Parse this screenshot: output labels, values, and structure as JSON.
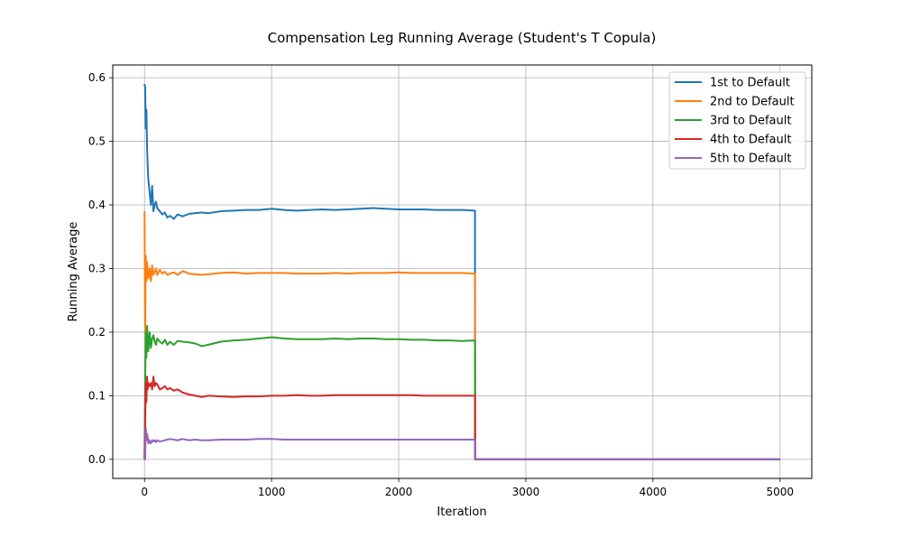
{
  "chart_data": {
    "type": "line",
    "title": "Compensation Leg Running Average (Student's T Copula)",
    "xlabel": "Iteration",
    "ylabel": "Running Average",
    "xlim": [
      -250,
      5250
    ],
    "ylim": [
      -0.03,
      0.62
    ],
    "xticks": [
      0,
      1000,
      2000,
      3000,
      4000,
      5000
    ],
    "yticks": [
      0.0,
      0.1,
      0.2,
      0.3,
      0.4,
      0.5,
      0.6
    ],
    "xtick_labels": [
      "0",
      "1000",
      "2000",
      "3000",
      "4000",
      "5000"
    ],
    "ytick_labels": [
      "0.0",
      "0.1",
      "0.2",
      "0.3",
      "0.4",
      "0.5",
      "0.6"
    ],
    "grid": true,
    "legend_position": "top-right",
    "series": [
      {
        "name": "1st to Default",
        "color": "#1f77b4",
        "x": [
          0,
          5,
          10,
          15,
          20,
          25,
          30,
          40,
          50,
          60,
          70,
          80,
          90,
          100,
          120,
          140,
          160,
          180,
          200,
          230,
          260,
          300,
          350,
          400,
          450,
          500,
          600,
          700,
          800,
          900,
          1000,
          1100,
          1200,
          1300,
          1400,
          1500,
          1600,
          1700,
          1800,
          1900,
          2000,
          2100,
          2200,
          2300,
          2400,
          2500,
          2600,
          2601,
          3000,
          4000,
          5000
        ],
        "y": [
          0.59,
          0.585,
          0.52,
          0.55,
          0.49,
          0.46,
          0.44,
          0.42,
          0.4,
          0.43,
          0.39,
          0.4,
          0.405,
          0.395,
          0.39,
          0.385,
          0.388,
          0.38,
          0.383,
          0.378,
          0.385,
          0.382,
          0.386,
          0.387,
          0.388,
          0.387,
          0.39,
          0.391,
          0.392,
          0.392,
          0.394,
          0.392,
          0.391,
          0.392,
          0.393,
          0.392,
          0.393,
          0.394,
          0.395,
          0.394,
          0.393,
          0.393,
          0.393,
          0.392,
          0.392,
          0.392,
          0.391,
          0.0,
          0.0,
          0.0,
          0.0
        ]
      },
      {
        "name": "2nd to Default",
        "color": "#ff7f0e",
        "x": [
          0,
          5,
          10,
          15,
          20,
          25,
          30,
          40,
          50,
          60,
          70,
          80,
          90,
          100,
          120,
          140,
          160,
          180,
          200,
          230,
          260,
          300,
          350,
          400,
          450,
          500,
          600,
          700,
          800,
          900,
          1000,
          1100,
          1200,
          1300,
          1400,
          1500,
          1600,
          1700,
          1800,
          1900,
          2000,
          2100,
          2200,
          2300,
          2400,
          2500,
          2600,
          2601,
          3000,
          4000,
          5000
        ],
        "y": [
          0.39,
          0.2,
          0.32,
          0.28,
          0.31,
          0.29,
          0.285,
          0.3,
          0.28,
          0.305,
          0.29,
          0.295,
          0.3,
          0.29,
          0.298,
          0.292,
          0.295,
          0.29,
          0.292,
          0.294,
          0.29,
          0.296,
          0.292,
          0.291,
          0.29,
          0.291,
          0.293,
          0.294,
          0.292,
          0.293,
          0.293,
          0.293,
          0.292,
          0.292,
          0.292,
          0.293,
          0.292,
          0.293,
          0.293,
          0.293,
          0.294,
          0.293,
          0.293,
          0.293,
          0.293,
          0.293,
          0.292,
          0.0,
          0.0,
          0.0,
          0.0
        ]
      },
      {
        "name": "3rd to Default",
        "color": "#2ca02c",
        "x": [
          0,
          5,
          10,
          15,
          20,
          25,
          30,
          40,
          50,
          60,
          70,
          80,
          90,
          100,
          120,
          140,
          160,
          180,
          200,
          230,
          260,
          300,
          350,
          400,
          450,
          500,
          600,
          700,
          800,
          900,
          1000,
          1100,
          1200,
          1300,
          1400,
          1500,
          1600,
          1700,
          1800,
          1900,
          2000,
          2100,
          2200,
          2300,
          2400,
          2500,
          2600,
          2601,
          3000,
          4000,
          5000
        ],
        "y": [
          0.0,
          0.12,
          0.2,
          0.16,
          0.21,
          0.19,
          0.17,
          0.2,
          0.175,
          0.19,
          0.195,
          0.185,
          0.18,
          0.19,
          0.185,
          0.182,
          0.188,
          0.18,
          0.185,
          0.18,
          0.186,
          0.185,
          0.184,
          0.182,
          0.178,
          0.18,
          0.185,
          0.187,
          0.188,
          0.19,
          0.192,
          0.19,
          0.189,
          0.189,
          0.189,
          0.19,
          0.189,
          0.19,
          0.19,
          0.189,
          0.189,
          0.188,
          0.188,
          0.187,
          0.187,
          0.186,
          0.187,
          0.0,
          0.0,
          0.0,
          0.0
        ]
      },
      {
        "name": "4th to Default",
        "color": "#d62728",
        "x": [
          0,
          5,
          10,
          15,
          20,
          25,
          30,
          40,
          50,
          60,
          70,
          80,
          90,
          100,
          120,
          140,
          160,
          180,
          200,
          230,
          260,
          300,
          350,
          400,
          450,
          500,
          600,
          700,
          800,
          900,
          1000,
          1100,
          1200,
          1300,
          1400,
          1500,
          1600,
          1700,
          1800,
          1900,
          2000,
          2100,
          2200,
          2300,
          2400,
          2500,
          2600,
          2601,
          3000,
          4000,
          5000
        ],
        "y": [
          0.0,
          0.05,
          0.12,
          0.09,
          0.13,
          0.11,
          0.12,
          0.115,
          0.12,
          0.11,
          0.13,
          0.115,
          0.12,
          0.118,
          0.11,
          0.112,
          0.115,
          0.11,
          0.112,
          0.108,
          0.11,
          0.105,
          0.102,
          0.1,
          0.098,
          0.1,
          0.099,
          0.098,
          0.099,
          0.099,
          0.1,
          0.1,
          0.101,
          0.1,
          0.1,
          0.101,
          0.101,
          0.101,
          0.101,
          0.101,
          0.101,
          0.101,
          0.1,
          0.1,
          0.1,
          0.1,
          0.1,
          0.0,
          0.0,
          0.0,
          0.0
        ]
      },
      {
        "name": "5th to Default",
        "color": "#9467bd",
        "x": [
          0,
          5,
          10,
          15,
          20,
          25,
          30,
          40,
          50,
          60,
          70,
          80,
          90,
          100,
          120,
          140,
          160,
          180,
          200,
          230,
          260,
          300,
          350,
          400,
          450,
          500,
          600,
          700,
          800,
          900,
          1000,
          1100,
          1200,
          1300,
          1400,
          1500,
          1600,
          1700,
          1800,
          1900,
          2000,
          2100,
          2200,
          2300,
          2400,
          2500,
          2600,
          2601,
          3000,
          4000,
          5000
        ],
        "y": [
          0.0,
          0.0,
          0.05,
          0.03,
          0.04,
          0.035,
          0.025,
          0.03,
          0.025,
          0.03,
          0.028,
          0.03,
          0.027,
          0.03,
          0.028,
          0.029,
          0.03,
          0.031,
          0.032,
          0.031,
          0.03,
          0.032,
          0.03,
          0.031,
          0.03,
          0.03,
          0.031,
          0.031,
          0.031,
          0.032,
          0.032,
          0.031,
          0.031,
          0.031,
          0.031,
          0.031,
          0.031,
          0.031,
          0.031,
          0.031,
          0.031,
          0.031,
          0.031,
          0.031,
          0.031,
          0.031,
          0.031,
          0.0,
          0.0,
          0.0,
          0.0
        ]
      }
    ]
  }
}
